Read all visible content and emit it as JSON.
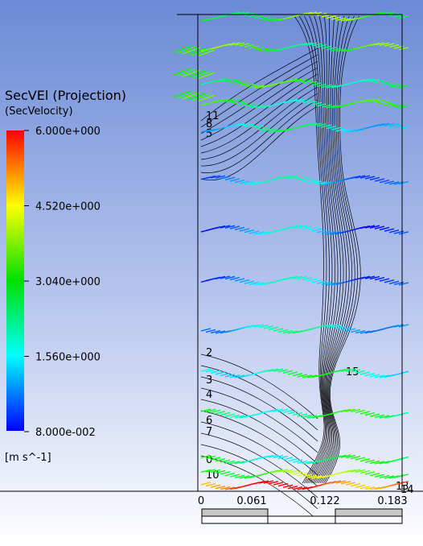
{
  "legend": {
    "title": "SecVEl (Projection)",
    "subtitle": "(SecVelocity)",
    "ticks": [
      "6.000e+000",
      "4.520e+000",
      "3.040e+000",
      "1.560e+000",
      "8.000e-002"
    ],
    "units": "[m s^-1]"
  },
  "contour_labels": [
    "11",
    "8",
    "5",
    "2",
    "3",
    "4",
    "6",
    "7",
    "0",
    "10",
    "15",
    "13",
    "14"
  ],
  "scale_bar": {
    "labels": [
      "0",
      "0.061",
      "0.122",
      "0.183"
    ]
  }
}
